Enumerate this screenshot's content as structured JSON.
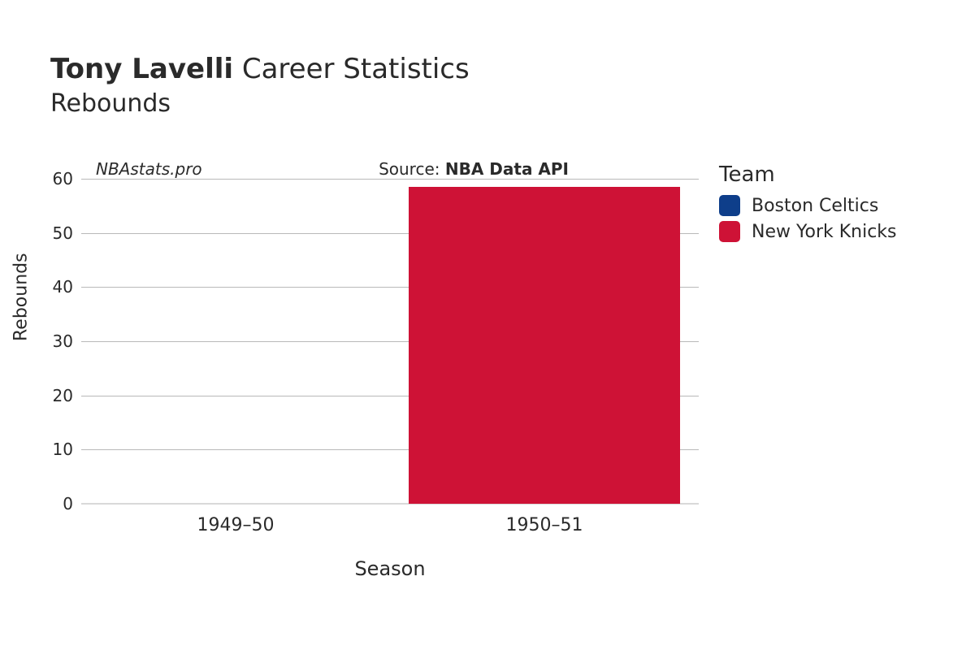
{
  "title": {
    "player": "Tony Lavelli",
    "suffix": "Career Statistics",
    "subtitle": "Rebounds"
  },
  "watermark": "NBAstats.pro",
  "source": {
    "prefix": "Source: ",
    "name": "NBA Data API"
  },
  "chart": {
    "type": "bar",
    "xlabel": "Season",
    "ylabel": "Rebounds",
    "categories": [
      "1949–50",
      "1950–51"
    ],
    "values": [
      0,
      58.5
    ],
    "bar_colors": [
      "#0e3e8a",
      "#ce1236"
    ],
    "ylim": [
      0,
      60
    ],
    "yticks": [
      0,
      10,
      20,
      30,
      40,
      50,
      60
    ],
    "bar_width": 0.88,
    "background_color": "#ffffff",
    "grid_color": "#b9b9b9",
    "baseline_color": "#d9d9d9",
    "tick_fontsize": 20,
    "label_fontsize": 22
  },
  "legend": {
    "title": "Team",
    "items": [
      {
        "label": "Boston Celtics",
        "color": "#0e3e8a"
      },
      {
        "label": "New York Knicks",
        "color": "#ce1236"
      }
    ]
  }
}
